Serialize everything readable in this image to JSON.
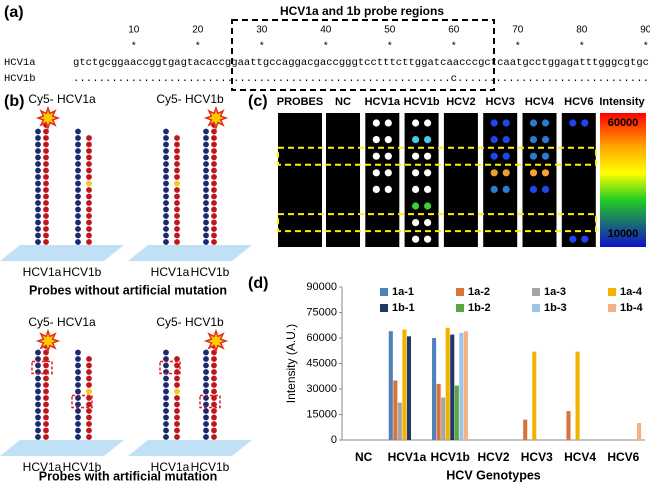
{
  "panel_a": {
    "label": "(a)",
    "title": "HCV1a and 1b probe regions",
    "positions": [
      10,
      20,
      30,
      40,
      50,
      60,
      70,
      80,
      90
    ],
    "marker": "*",
    "rows": [
      {
        "name": "HCV1a",
        "sequence": "gtctgcggaaccggtgagtacaccggaattgccaggacgaccgggtcctttcttggatcaacccgctcaatgcctggagatttgggcgtgc"
      },
      {
        "name": "HCV1b",
        "sequence": "...........................................................c.............................."
      }
    ]
  },
  "panel_b": {
    "label": "(b)",
    "groups": [
      {
        "caption": "Probes without artificial mutation",
        "diagrams": [
          {
            "title": "Cy5- HCV1a",
            "labels": [
              "HCV1a",
              "HCV1b"
            ]
          },
          {
            "title": "Cy5- HCV1b",
            "labels": [
              "HCV1a",
              "HCV1b"
            ]
          }
        ]
      },
      {
        "caption": "Probes with artificial mutation",
        "diagrams": [
          {
            "title": "Cy5- HCV1a",
            "labels": [
              "HCV1a",
              "HCV1b"
            ]
          },
          {
            "title": "Cy5- HCV1b",
            "labels": [
              "HCV1a",
              "HCV1b"
            ]
          }
        ]
      }
    ]
  },
  "panel_c": {
    "label": "(c)",
    "header": "PROBES",
    "columns": [
      "NC",
      "HCV1a",
      "HCV1b",
      "HCV2",
      "HCV3",
      "HCV4",
      "HCV6"
    ],
    "rows": [
      "1a-1",
      "1a-2",
      "1a-3",
      "1a-4",
      "1b-1",
      "1b-2",
      "1b-3",
      "1b-4"
    ],
    "colorbar": {
      "title": "Intensity",
      "max": "60000",
      "min": "10000"
    }
  },
  "chart_data": {
    "type": "bar",
    "label": "(d)",
    "xlabel": "HCV Genotypes",
    "ylabel": "Intensity (A.U.)",
    "categories": [
      "NC",
      "HCV1a",
      "HCV1b",
      "HCV2",
      "HCV3",
      "HCV4",
      "HCV6"
    ],
    "series": [
      {
        "name": "1a-1",
        "color": "#4f81bd",
        "values": [
          0,
          64000,
          60000,
          0,
          0,
          0,
          0
        ]
      },
      {
        "name": "1a-2",
        "color": "#d8733a",
        "values": [
          0,
          35000,
          33000,
          0,
          12000,
          17000,
          0
        ]
      },
      {
        "name": "1a-3",
        "color": "#a5a5a5",
        "values": [
          0,
          22000,
          25000,
          0,
          0,
          0,
          0
        ]
      },
      {
        "name": "1a-4",
        "color": "#f0b400",
        "values": [
          0,
          65000,
          66000,
          0,
          52000,
          52000,
          0
        ]
      },
      {
        "name": "1b-1",
        "color": "#1f3864",
        "values": [
          0,
          61000,
          62000,
          0,
          0,
          0,
          0
        ]
      },
      {
        "name": "1b-2",
        "color": "#5aa543",
        "values": [
          0,
          0,
          32000,
          0,
          0,
          0,
          0
        ]
      },
      {
        "name": "1b-3",
        "color": "#9dc3e6",
        "values": [
          0,
          0,
          63000,
          0,
          0,
          0,
          0
        ]
      },
      {
        "name": "1b-4",
        "color": "#f4b183",
        "values": [
          0,
          0,
          64000,
          0,
          0,
          0,
          10000
        ]
      }
    ],
    "ylim": [
      0,
      90000
    ],
    "yticks": [
      0,
      15000,
      30000,
      45000,
      60000,
      75000,
      90000
    ],
    "legend": "top"
  }
}
